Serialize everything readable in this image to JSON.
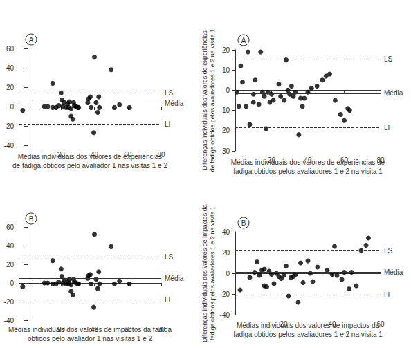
{
  "chart_data": [
    {
      "type": "scatter",
      "annotations": [
        "A"
      ],
      "xlabel": "Médias individuais dos valores de experiências\nde fadiga obtidos pelo avaliador 1 nas visitas 1 e 2",
      "x": [
        -3,
        10,
        12,
        15,
        15,
        17,
        18.5,
        20,
        20.4,
        21,
        22,
        23,
        24,
        24.5,
        25,
        26,
        26,
        27,
        27.5,
        28,
        29,
        30,
        30.5,
        36,
        36.5,
        37.5,
        38,
        39.6,
        40,
        41,
        42,
        42.6,
        43,
        50,
        52,
        55,
        61
      ],
      "values": [
        -4,
        0,
        0,
        -1,
        24,
        -1,
        1,
        14,
        7,
        0,
        4,
        -1,
        3,
        -1,
        5,
        -10,
        -2,
        -13,
        4,
        1,
        0,
        -1,
        -1,
        4,
        8,
        10,
        -1,
        -27,
        51,
        4,
        -6,
        10,
        -1,
        38,
        -1,
        2,
        -1
      ],
      "reference_lines": [
        {
          "name": "LS",
          "value": 14,
          "line_style": "dashed"
        },
        {
          "name": "Média",
          "value": 3,
          "line_style": "solid"
        },
        {
          "name": "LI",
          "value": -18,
          "line_style": "dashed"
        }
      ],
      "xlim": [
        -5,
        80
      ],
      "xticks": [
        20,
        40,
        60,
        80
      ],
      "ylim": [
        -40,
        60
      ],
      "yticks": [
        -40,
        -20,
        0,
        20,
        40,
        60
      ],
      "color": "#000000",
      "marker": "circle",
      "grid": false
    },
    {
      "type": "scatter",
      "annotations": [
        "A"
      ],
      "xlabel": "Médias individuais dos valores de experiências de\nfadiga obtidos pelos avaliadores 1 e 2 na visita 1",
      "ylabel": "Diferenças individuais dos valores de experiências\nde fadiga obtidos pelos avaliadores 1 e 2 na visita 1",
      "x": [
        1,
        2,
        3,
        4,
        6,
        7,
        8,
        10,
        10,
        11,
        13,
        14,
        15,
        16,
        17,
        18,
        19,
        20,
        21,
        24,
        25,
        27,
        28,
        29,
        30,
        31,
        32,
        33,
        35,
        36,
        37,
        38,
        40,
        42,
        45,
        48,
        50,
        52,
        55,
        58,
        60,
        62,
        63
      ],
      "values": [
        -1,
        -8,
        12,
        4,
        -8,
        19,
        -17,
        -2,
        -6,
        5,
        -7,
        19,
        -1,
        -3,
        -19,
        -1,
        -6,
        -2,
        -5,
        3,
        -3,
        -5,
        15,
        0,
        -2,
        2,
        -3,
        -1,
        -22,
        -4,
        -8,
        -4,
        -1,
        1,
        2,
        5,
        7,
        8,
        -5,
        -12,
        -15,
        -9,
        -10
      ],
      "reference_lines": [
        {
          "name": "LS",
          "value": 15.5,
          "line_style": "dashed"
        },
        {
          "name": "Média",
          "value": -1.5,
          "line_style": "solid"
        },
        {
          "name": "LI",
          "value": -18.5,
          "line_style": "dashed"
        }
      ],
      "xlim": [
        0,
        80
      ],
      "xticks": [
        20,
        40,
        60,
        80
      ],
      "ylim": [
        -30,
        20
      ],
      "yticks": [
        -30,
        -20,
        -10,
        0,
        10,
        20
      ],
      "color": "#000000",
      "marker": "circle",
      "grid": false
    },
    {
      "type": "scatter",
      "annotations": [
        "B"
      ],
      "xlabel": "Médias individuais dos valores de impactos da fadiga\nobtidos pelo avaliador 1 nas visitas 1 e 2",
      "x": [
        -3,
        10,
        12,
        15,
        15,
        17,
        18.5,
        20,
        20.4,
        21,
        22,
        23,
        24,
        24.5,
        25,
        26,
        26,
        27,
        27.5,
        28,
        29,
        30,
        30.5,
        36,
        36.5,
        37.5,
        38,
        39.6,
        40,
        41,
        42,
        42.6,
        43,
        50,
        52,
        55,
        61
      ],
      "values": [
        -4,
        0,
        0,
        -1,
        24,
        -1,
        1,
        15,
        7,
        0,
        3,
        -1,
        2,
        -1,
        4,
        -9,
        -2,
        -13,
        4,
        1,
        0,
        -1,
        -1,
        5,
        8,
        9,
        -1,
        -26,
        52,
        4,
        -6,
        12,
        -1,
        39,
        -1,
        2,
        -1
      ],
      "reference_lines": [
        {
          "name": "LS",
          "value": 28,
          "line_style": "dashed"
        },
        {
          "name": "Média",
          "value": 5,
          "line_style": "solid"
        },
        {
          "name": "LI",
          "value": -18,
          "line_style": "dashed"
        }
      ],
      "xlim": [
        -5,
        80
      ],
      "xticks": [
        20,
        40,
        60,
        80
      ],
      "ylim": [
        -40,
        60
      ],
      "yticks": [
        -40,
        -20,
        0,
        20,
        40,
        60
      ],
      "color": "#000000",
      "marker": "circle",
      "grid": false
    },
    {
      "type": "scatter",
      "annotations": [
        "B"
      ],
      "xlabel": "Médias individuais dos valores de impactos da\nfadiga obtidos pelos avaliadores 1 e 2 na visita 1",
      "ylabel": "Diferenças individuais dos valores de impactos da\nfadiga obtidos pelos avaliadores 1 e 2 na visita 1",
      "x": [
        2,
        6,
        8,
        9,
        10,
        11,
        12,
        12,
        13,
        14,
        15,
        16,
        17,
        18,
        19,
        20,
        21,
        22,
        23,
        24,
        25,
        26,
        27,
        28,
        30,
        31,
        32,
        34,
        38,
        40,
        41,
        42,
        44,
        45,
        47,
        48,
        50,
        52,
        54,
        55
      ],
      "values": [
        -16,
        -4,
        1,
        11,
        -2,
        3,
        -12,
        4,
        -13,
        2,
        -1,
        -10,
        0,
        -3,
        -5,
        -2,
        7,
        -22,
        -4,
        -3,
        -1,
        -28,
        10,
        -9,
        12,
        0,
        -8,
        6,
        3,
        -1,
        26,
        -2,
        -6,
        1,
        -15,
        1,
        -12,
        22,
        27,
        34
      ],
      "reference_lines": [
        {
          "name": "LS",
          "value": 22,
          "line_style": "dashed"
        },
        {
          "name": "Média",
          "value": 1,
          "line_style": "solid"
        },
        {
          "name": "LI",
          "value": -21,
          "line_style": "dashed"
        }
      ],
      "xlim": [
        0,
        60
      ],
      "xticks": [
        20,
        40,
        60
      ],
      "ylim": [
        -40,
        40
      ],
      "yticks": [
        -40,
        -20,
        0,
        20,
        40
      ],
      "color": "#000000",
      "marker": "circle",
      "grid": false
    }
  ]
}
